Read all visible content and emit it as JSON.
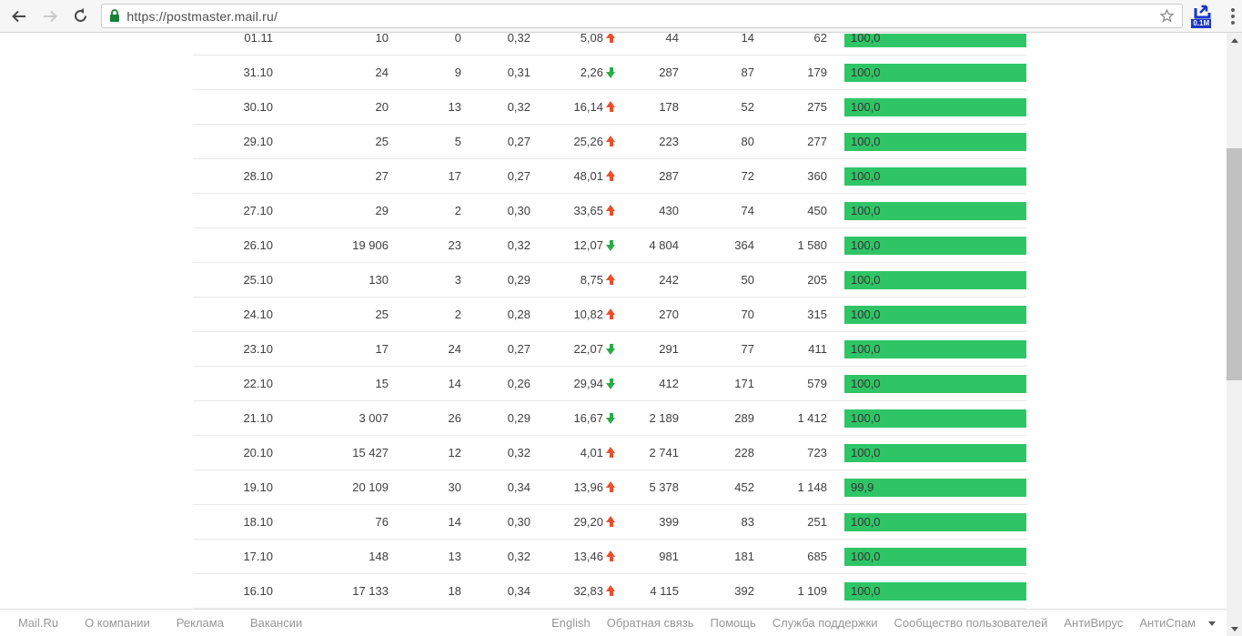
{
  "browser": {
    "url": "https://postmaster.mail.ru/",
    "extension_badge": "0.1M"
  },
  "colors": {
    "bar_green": "#2fc566",
    "trend_up": "#e8502d",
    "trend_down": "#2bab47"
  },
  "table": {
    "rows": [
      {
        "date": "01.11",
        "cells": [
          "10",
          "0",
          "0,32"
        ],
        "trend": {
          "value": "5,08",
          "direction": "up"
        },
        "cells2": [
          "44",
          "14",
          "62"
        ],
        "bar": {
          "label": "100,0",
          "pct": 100
        }
      },
      {
        "date": "31.10",
        "cells": [
          "24",
          "9",
          "0,31"
        ],
        "trend": {
          "value": "2,26",
          "direction": "down"
        },
        "cells2": [
          "287",
          "87",
          "179"
        ],
        "bar": {
          "label": "100,0",
          "pct": 100
        }
      },
      {
        "date": "30.10",
        "cells": [
          "20",
          "13",
          "0,32"
        ],
        "trend": {
          "value": "16,14",
          "direction": "up"
        },
        "cells2": [
          "178",
          "52",
          "275"
        ],
        "bar": {
          "label": "100,0",
          "pct": 100
        }
      },
      {
        "date": "29.10",
        "cells": [
          "25",
          "5",
          "0,27"
        ],
        "trend": {
          "value": "25,26",
          "direction": "up"
        },
        "cells2": [
          "223",
          "80",
          "277"
        ],
        "bar": {
          "label": "100,0",
          "pct": 100
        }
      },
      {
        "date": "28.10",
        "cells": [
          "27",
          "17",
          "0,27"
        ],
        "trend": {
          "value": "48,01",
          "direction": "up"
        },
        "cells2": [
          "287",
          "72",
          "360"
        ],
        "bar": {
          "label": "100,0",
          "pct": 100
        }
      },
      {
        "date": "27.10",
        "cells": [
          "29",
          "2",
          "0,30"
        ],
        "trend": {
          "value": "33,65",
          "direction": "up"
        },
        "cells2": [
          "430",
          "74",
          "450"
        ],
        "bar": {
          "label": "100,0",
          "pct": 100
        }
      },
      {
        "date": "26.10",
        "cells": [
          "19 906",
          "23",
          "0,32"
        ],
        "trend": {
          "value": "12,07",
          "direction": "down"
        },
        "cells2": [
          "4 804",
          "364",
          "1 580"
        ],
        "bar": {
          "label": "100,0",
          "pct": 100
        }
      },
      {
        "date": "25.10",
        "cells": [
          "130",
          "3",
          "0,29"
        ],
        "trend": {
          "value": "8,75",
          "direction": "up"
        },
        "cells2": [
          "242",
          "50",
          "205"
        ],
        "bar": {
          "label": "100,0",
          "pct": 100
        }
      },
      {
        "date": "24.10",
        "cells": [
          "25",
          "2",
          "0,28"
        ],
        "trend": {
          "value": "10,82",
          "direction": "up"
        },
        "cells2": [
          "270",
          "70",
          "315"
        ],
        "bar": {
          "label": "100,0",
          "pct": 100
        }
      },
      {
        "date": "23.10",
        "cells": [
          "17",
          "24",
          "0,27"
        ],
        "trend": {
          "value": "22,07",
          "direction": "down"
        },
        "cells2": [
          "291",
          "77",
          "411"
        ],
        "bar": {
          "label": "100,0",
          "pct": 100
        }
      },
      {
        "date": "22.10",
        "cells": [
          "15",
          "14",
          "0,26"
        ],
        "trend": {
          "value": "29,94",
          "direction": "down"
        },
        "cells2": [
          "412",
          "171",
          "579"
        ],
        "bar": {
          "label": "100,0",
          "pct": 100
        }
      },
      {
        "date": "21.10",
        "cells": [
          "3 007",
          "26",
          "0,29"
        ],
        "trend": {
          "value": "16,67",
          "direction": "down"
        },
        "cells2": [
          "2 189",
          "289",
          "1 412"
        ],
        "bar": {
          "label": "100,0",
          "pct": 100
        }
      },
      {
        "date": "20.10",
        "cells": [
          "15 427",
          "12",
          "0,32"
        ],
        "trend": {
          "value": "4,01",
          "direction": "up"
        },
        "cells2": [
          "2 741",
          "228",
          "723"
        ],
        "bar": {
          "label": "100,0",
          "pct": 100
        }
      },
      {
        "date": "19.10",
        "cells": [
          "20 109",
          "30",
          "0,34"
        ],
        "trend": {
          "value": "13,96",
          "direction": "up"
        },
        "cells2": [
          "5 378",
          "452",
          "1 148"
        ],
        "bar": {
          "label": "99,9",
          "pct": 99.9
        }
      },
      {
        "date": "18.10",
        "cells": [
          "76",
          "14",
          "0,30"
        ],
        "trend": {
          "value": "29,20",
          "direction": "up"
        },
        "cells2": [
          "399",
          "83",
          "251"
        ],
        "bar": {
          "label": "100,0",
          "pct": 100
        }
      },
      {
        "date": "17.10",
        "cells": [
          "148",
          "13",
          "0,32"
        ],
        "trend": {
          "value": "13,46",
          "direction": "up"
        },
        "cells2": [
          "981",
          "181",
          "685"
        ],
        "bar": {
          "label": "100,0",
          "pct": 100
        }
      },
      {
        "date": "16.10",
        "cells": [
          "17 133",
          "18",
          "0,34"
        ],
        "trend": {
          "value": "32,83",
          "direction": "up"
        },
        "cells2": [
          "4 115",
          "392",
          "1 109"
        ],
        "bar": {
          "label": "100,0",
          "pct": 100
        }
      }
    ]
  },
  "footer": {
    "left_links": [
      "Mail.Ru",
      "О компании",
      "Реклама",
      "Вакансии"
    ],
    "right_links": [
      "English",
      "Обратная связь",
      "Помощь",
      "Служба поддержки",
      "Сообщество пользователей",
      "АнтиВирус",
      "АнтиСпам"
    ]
  }
}
